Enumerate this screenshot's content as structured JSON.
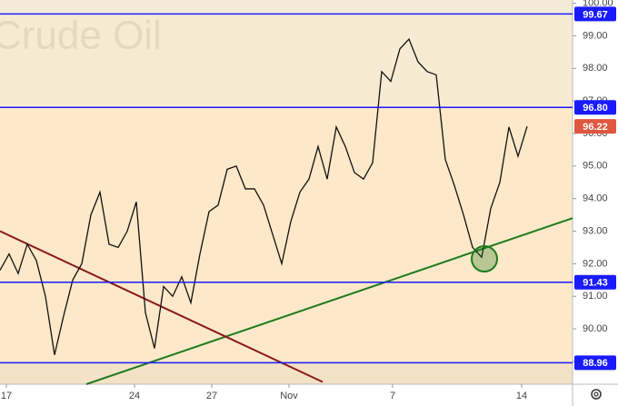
{
  "chart_data": {
    "type": "line",
    "title": "Crude Oil",
    "color": "#111111",
    "xlim": [
      0,
      63
    ],
    "ylim": [
      88.3,
      100.1
    ],
    "x": [
      0,
      1,
      2,
      3,
      4,
      5,
      6,
      7,
      8,
      9,
      10,
      11,
      12,
      13,
      14,
      15,
      16,
      17,
      18,
      19,
      20,
      21,
      22,
      23,
      24,
      25,
      26,
      27,
      28,
      29,
      30,
      31,
      32,
      33,
      34,
      35,
      36,
      37,
      38,
      39,
      40,
      41,
      42,
      43,
      44,
      45,
      46,
      47,
      48,
      49,
      50,
      51,
      52,
      53,
      54,
      55,
      56,
      57,
      58
    ],
    "values": [
      91.8,
      92.3,
      91.7,
      92.6,
      92.1,
      91.0,
      89.2,
      90.4,
      91.5,
      92.0,
      93.5,
      94.2,
      92.6,
      92.5,
      93.0,
      93.9,
      90.5,
      89.4,
      91.3,
      91.0,
      91.6,
      90.8,
      92.3,
      93.6,
      93.8,
      94.9,
      95.0,
      94.3,
      94.3,
      93.8,
      92.9,
      92.0,
      93.3,
      94.2,
      94.6,
      95.6,
      94.6,
      96.2,
      95.6,
      94.8,
      94.6,
      95.1,
      97.9,
      97.6,
      98.6,
      98.9,
      98.2,
      97.9,
      97.8,
      95.2,
      94.4,
      93.5,
      92.5,
      92.2,
      93.7,
      94.5,
      96.2,
      95.3,
      96.22
    ],
    "yticks": [
      {
        "value": 100,
        "label": "100.00"
      },
      {
        "value": 99,
        "label": "99.00"
      },
      {
        "value": 98,
        "label": "98.00"
      },
      {
        "value": 97,
        "label": "97.00"
      },
      {
        "value": 96,
        "label": "96.00"
      },
      {
        "value": 95,
        "label": "95.00"
      },
      {
        "value": 94,
        "label": "94.00"
      },
      {
        "value": 93,
        "label": "93.00"
      },
      {
        "value": 92,
        "label": "92.00"
      },
      {
        "value": 91,
        "label": "91.00"
      },
      {
        "value": 90,
        "label": "90.00"
      },
      {
        "value": 89,
        "label": "89.00"
      }
    ],
    "xticks": [
      {
        "value": 0.7,
        "label": "17"
      },
      {
        "value": 14.8,
        "label": "24"
      },
      {
        "value": 23.3,
        "label": "27"
      },
      {
        "value": 31.8,
        "label": "Nov"
      },
      {
        "value": 43.2,
        "label": "7"
      },
      {
        "value": 57.4,
        "label": "14"
      }
    ],
    "levels": [
      {
        "value": 99.67,
        "label": "99.67",
        "color": "#1a1aff"
      },
      {
        "value": 96.8,
        "label": "96.80",
        "color": "#1a1aff"
      },
      {
        "value": 96.22,
        "label": "96.22",
        "color": "#e0573f"
      },
      {
        "value": 91.43,
        "label": "91.43",
        "color": "#1a1aff"
      },
      {
        "value": 88.96,
        "label": "88.96",
        "color": "#1a1aff"
      }
    ],
    "trendlines": [
      {
        "color": "#1e7a1e",
        "x": [
          9.5,
          63
        ],
        "y": [
          88.3,
          93.4
        ]
      },
      {
        "color": "#8b1a1a",
        "x": [
          0,
          35.5
        ],
        "y": [
          93.0,
          88.37
        ]
      }
    ],
    "circle": {
      "x": 53.3,
      "y": 92.15,
      "color": "#1e7a1e"
    }
  }
}
